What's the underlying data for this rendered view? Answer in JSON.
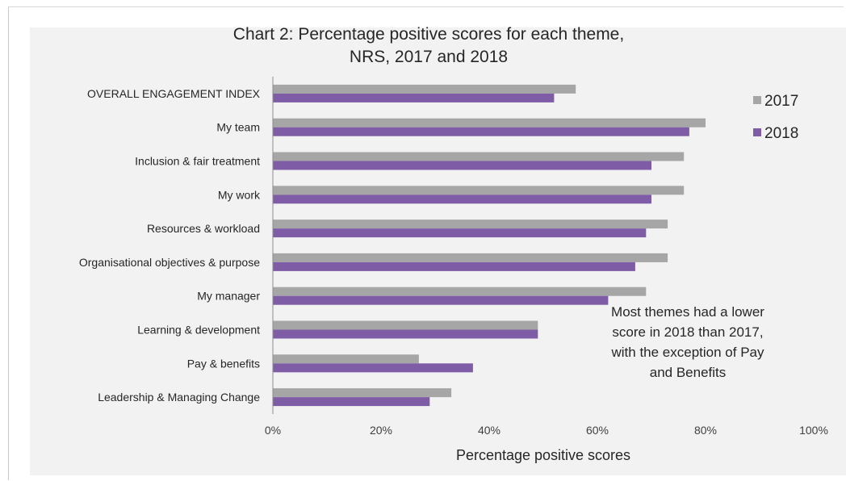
{
  "chart_data": {
    "type": "bar",
    "orientation": "horizontal",
    "title": [
      "Chart 2: Percentage positive scores for each theme,",
      "NRS, 2017 and 2018"
    ],
    "categories": [
      "OVERALL ENGAGEMENT INDEX",
      "My team",
      "Inclusion & fair treatment",
      "My work",
      "Resources & workload",
      "Organisational objectives & purpose",
      "My manager",
      "Learning & development",
      "Pay & benefits",
      "Leadership & Managing Change"
    ],
    "series": [
      {
        "name": "2017",
        "color": "#a6a6a6",
        "values": [
          56,
          80,
          76,
          76,
          73,
          73,
          69,
          49,
          27,
          33
        ]
      },
      {
        "name": "2018",
        "color": "#7f5ca6",
        "values": [
          52,
          77,
          70,
          70,
          69,
          67,
          62,
          49,
          37,
          29
        ]
      }
    ],
    "xlabel": "Percentage positive scores",
    "ylabel": "",
    "xlim": [
      0,
      100
    ],
    "x_ticks": [
      "0%",
      "20%",
      "40%",
      "60%",
      "80%",
      "100%"
    ],
    "grid": false,
    "legend_position": "top-right",
    "annotation": [
      "Most themes had a lower",
      "score in 2018 than 2017,",
      "with the exception of Pay",
      "and Benefits"
    ]
  }
}
